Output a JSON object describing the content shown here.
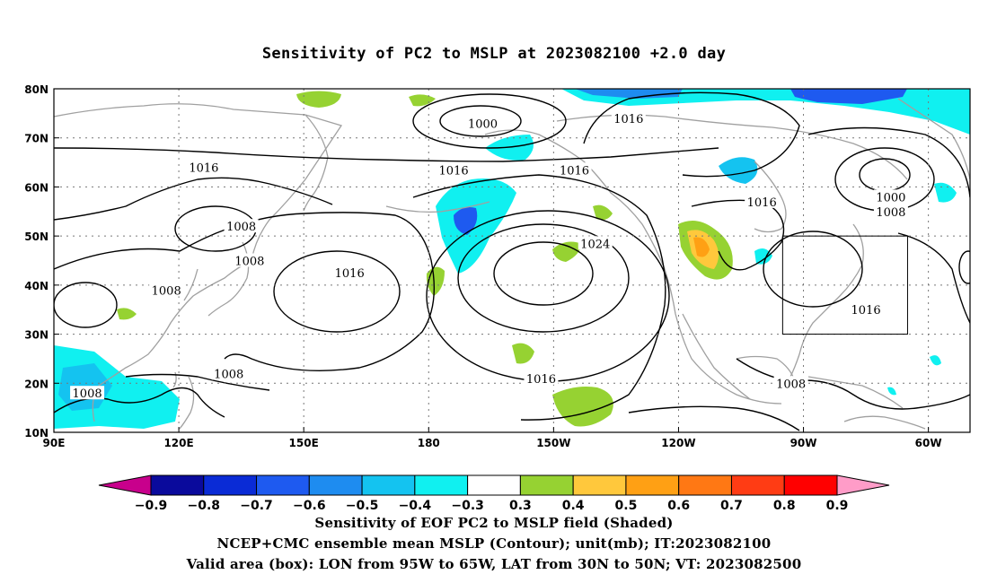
{
  "title": "Sensitivity of PC2 to MSLP at 2023082100 +2.0 day",
  "captions": {
    "line1": "Sensitivity of EOF PC2 to MSLP field (Shaded)",
    "line2": "NCEP+CMC ensemble mean MSLP (Contour); unit(mb); IT:2023082100",
    "line3": "Valid area (box): LON from 95W to 65W, LAT from 30N to 50N; VT: 2023082500"
  },
  "map": {
    "lon_range_east": [
      90,
      310
    ],
    "lat_range": [
      10,
      80
    ],
    "lon_ticks": [
      {
        "lon": 90,
        "label": "90E"
      },
      {
        "lon": 120,
        "label": "120E"
      },
      {
        "lon": 150,
        "label": "150E"
      },
      {
        "lon": 180,
        "label": "180"
      },
      {
        "lon": 210,
        "label": "150W"
      },
      {
        "lon": 240,
        "label": "120W"
      },
      {
        "lon": 270,
        "label": "90W"
      },
      {
        "lon": 300,
        "label": "60W"
      }
    ],
    "lat_ticks": [
      {
        "lat": 10,
        "label": "10N"
      },
      {
        "lat": 20,
        "label": "20N"
      },
      {
        "lat": 30,
        "label": "30N"
      },
      {
        "lat": 40,
        "label": "40N"
      },
      {
        "lat": 50,
        "label": "50N"
      },
      {
        "lat": 60,
        "label": "60N"
      },
      {
        "lat": 70,
        "label": "70N"
      },
      {
        "lat": 80,
        "label": "80N"
      }
    ],
    "grid": true,
    "valid_box": {
      "lon_west": 265,
      "lon_east": 295,
      "lat_south": 30,
      "lat_north": 50
    },
    "contour_labels": [
      {
        "text": "1000",
        "lon": 193,
        "lat": 73
      },
      {
        "text": "1016",
        "lon": 228,
        "lat": 74
      },
      {
        "text": "1016",
        "lon": 126,
        "lat": 64
      },
      {
        "text": "1016",
        "lon": 186,
        "lat": 63.5
      },
      {
        "text": "1016",
        "lon": 215,
        "lat": 63.5
      },
      {
        "text": "1016",
        "lon": 260,
        "lat": 57
      },
      {
        "text": "1000",
        "lon": 291,
        "lat": 58
      },
      {
        "text": "1008",
        "lon": 291,
        "lat": 55
      },
      {
        "text": "1008",
        "lon": 135,
        "lat": 52
      },
      {
        "text": "1008",
        "lon": 137,
        "lat": 45
      },
      {
        "text": "1016",
        "lon": 161,
        "lat": 42.5
      },
      {
        "text": "1024",
        "lon": 220,
        "lat": 48.5
      },
      {
        "text": "1008",
        "lon": 117,
        "lat": 39
      },
      {
        "text": "1016",
        "lon": 285,
        "lat": 35
      },
      {
        "text": "1016",
        "lon": 207,
        "lat": 21
      },
      {
        "text": "1008",
        "lon": 267,
        "lat": 20
      },
      {
        "text": "1008",
        "lon": 132,
        "lat": 22
      },
      {
        "text": "1008",
        "lon": 98,
        "lat": 18
      }
    ]
  },
  "colorbar": {
    "boundaries": [
      "-0.9",
      "-0.8",
      "-0.7",
      "-0.6",
      "-0.5",
      "-0.4",
      "-0.3",
      "0.3",
      "0.4",
      "0.5",
      "0.6",
      "0.7",
      "0.8",
      "0.9"
    ],
    "colors": [
      "#c8008c",
      "#0a0a9c",
      "#0a2bd6",
      "#1e5af0",
      "#1e8cf0",
      "#14c3f0",
      "#10f0f0",
      "#ffffff",
      "#96d232",
      "#ffc83c",
      "#ffa014",
      "#ff7814",
      "#ff3c14",
      "#ff0000",
      "#ff9cc8"
    ]
  }
}
